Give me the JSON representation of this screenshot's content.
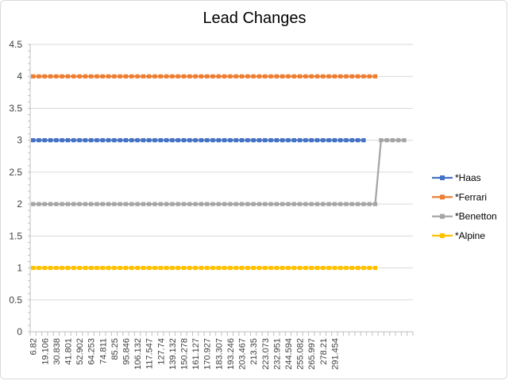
{
  "chart_data": {
    "type": "line",
    "title": "Lead Changes",
    "xlabel": "",
    "ylabel": "",
    "ylim": [
      0,
      4.5
    ],
    "yticks": [
      0,
      0.5,
      1,
      1.5,
      2,
      2.5,
      3,
      3.5,
      4,
      4.5
    ],
    "grid": "horizontal",
    "legend_position": "right",
    "x_tick_labels": [
      "6.82",
      "19.106",
      "30.838",
      "41.801",
      "52.902",
      "64.253",
      "74.811",
      "85.25",
      "95.846",
      "106.132",
      "117.547",
      "127.74",
      "139.132",
      "150.278",
      "161.127",
      "170.927",
      "183.307",
      "193.246",
      "203.467",
      "213.35",
      "223.073",
      "232.951",
      "244.594",
      "255.082",
      "265.997",
      "278.21",
      "291.454"
    ],
    "num_points": 61,
    "series": [
      {
        "name": "*Haas",
        "color": "#4472C4",
        "segments": [
          {
            "from": 0,
            "to": 57,
            "value": 3
          }
        ]
      },
      {
        "name": "*Ferrari",
        "color": "#ED7D31",
        "segments": [
          {
            "from": 0,
            "to": 59,
            "value": 4
          }
        ]
      },
      {
        "name": "*Benetton",
        "color": "#A5A5A5",
        "segments": [
          {
            "from": 0,
            "to": 59,
            "value": 2
          },
          {
            "from": 60,
            "to": 64,
            "value": 3
          }
        ]
      },
      {
        "name": "*Alpine",
        "color": "#FFC000",
        "segments": [
          {
            "from": 0,
            "to": 59,
            "value": 1
          }
        ]
      }
    ]
  }
}
